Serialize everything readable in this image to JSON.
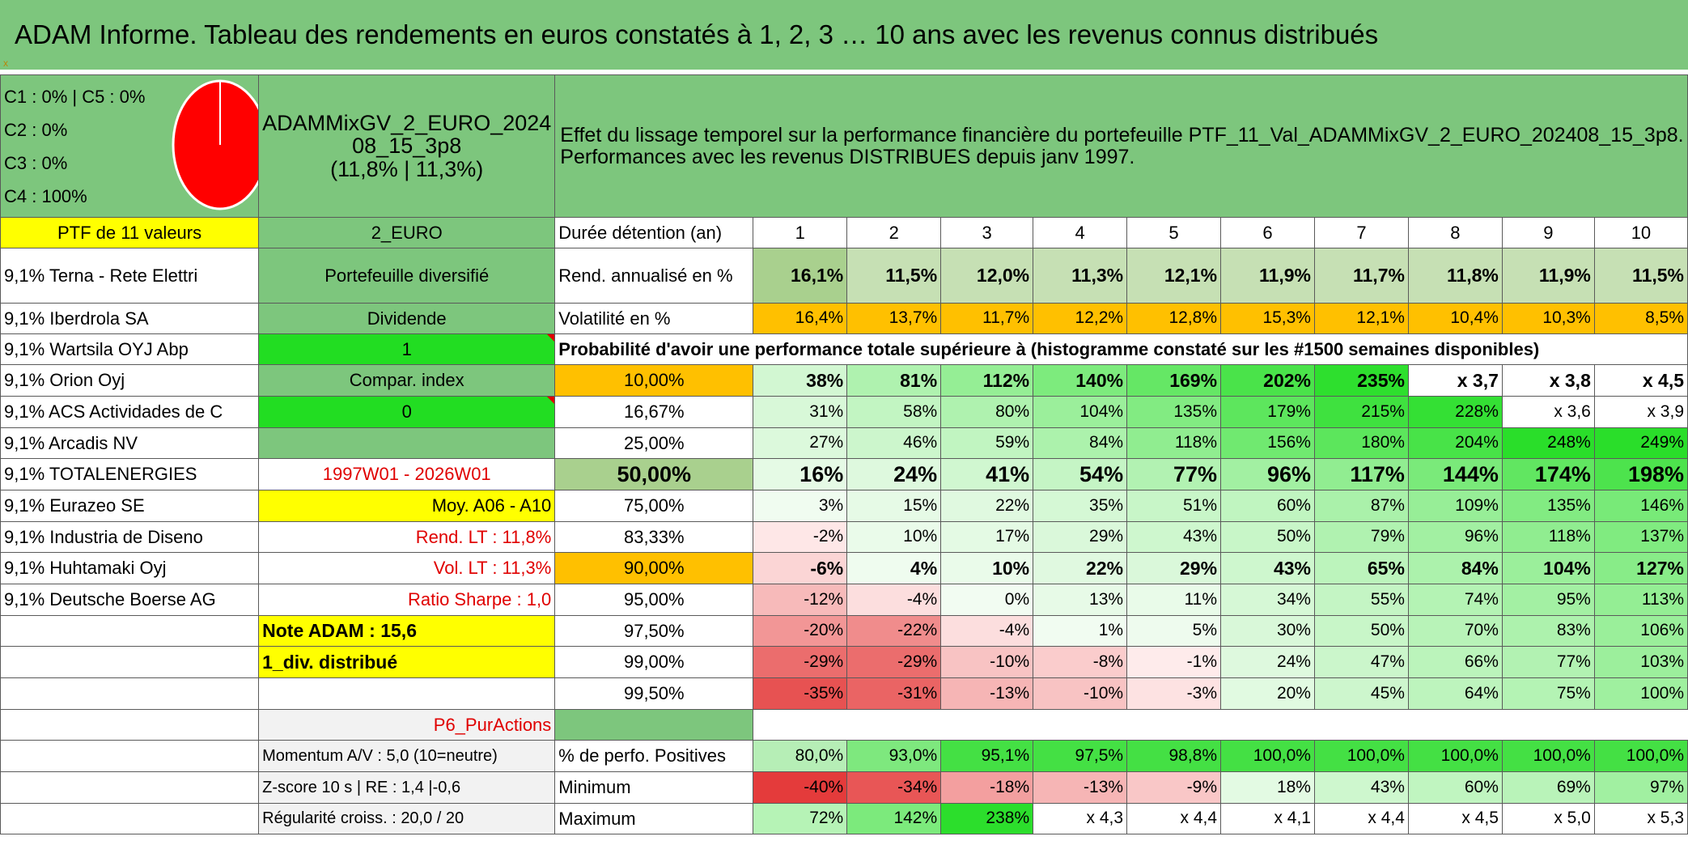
{
  "title": "ADAM Informe. Tableau des rendements en euros constatés à 1, 2, 3 … 10 ans avec les revenus connus distribués",
  "allocation": [
    "C1 : 0% | C5 : 0%",
    "C2 : 0%",
    "C3 : 0%",
    "C4 : 100%"
  ],
  "pie": {
    "slices": [
      {
        "label": "C4",
        "value": 100,
        "color": "#ff0000"
      }
    ],
    "stroke": "#ffffff"
  },
  "portfolio": {
    "name_lines": [
      "ADAMMixGV_2_EURO_2024",
      "08_15_3p8",
      "(11,8% | 11,3%)"
    ],
    "ptf_label": "PTF de 11 valeurs",
    "currency": "2_EURO",
    "type": "Portefeuille diversifié",
    "dividend_label": "Dividende",
    "dividend_value": "1",
    "compar_label": "Compar. index",
    "compar_value": "0",
    "period": "1997W01 - 2026W01",
    "moy": "Moy. A06 - A10",
    "rend_lt": "Rend. LT : 11,8%",
    "vol_lt": "Vol. LT : 11,3%",
    "sharpe": "Ratio Sharpe : 1,0",
    "note": "Note ADAM : 15,6",
    "div_distrib": "1_div. distribué",
    "category": "P6_PurActions",
    "momentum": "Momentum A/V : 5,0 (10=neutre)",
    "zscore": "Z-score 10 s | RE : 1,4 |-0,6",
    "regularite": "Régularité croiss. : 20,0 / 20"
  },
  "description_lines": [
    "Effet du lissage temporel sur la performance financière du portefeuille PTF_11_Val_ADAMMixGV_2_EURO_202408_15_3p8.",
    "Performances avec les revenus DISTRIBUES depuis janv 1997."
  ],
  "holdings": [
    "9,1% Terna - Rete Elettri",
    "9,1% Iberdrola SA",
    "9,1% Wartsila OYJ Abp",
    "9,1% Orion Oyj",
    "9,1% ACS Actividades de C",
    "9,1% Arcadis NV",
    "9,1% TOTALENERGIES",
    "9,1% Eurazeo SE",
    "9,1% Industria de Diseno",
    "9,1% Huhtamaki Oyj",
    "9,1% Deutsche Boerse AG"
  ],
  "table": {
    "duration_label": "Durée détention (an)",
    "years": [
      "1",
      "2",
      "3",
      "4",
      "5",
      "6",
      "7",
      "8",
      "9",
      "10"
    ],
    "rend_label": "Rend. annualisé en %",
    "rend": [
      "16,1%",
      "11,5%",
      "12,0%",
      "11,3%",
      "12,1%",
      "11,9%",
      "11,7%",
      "11,8%",
      "11,9%",
      "11,5%"
    ],
    "vol_label": "Volatilité en %",
    "vol": [
      "16,4%",
      "13,7%",
      "11,7%",
      "12,2%",
      "12,8%",
      "15,3%",
      "12,1%",
      "10,4%",
      "10,3%",
      "8,5%"
    ],
    "prob_title": "Probabilité d'avoir une performance totale supérieure à (histogramme constaté sur les #1500 semaines disponibles)",
    "prob_rows": [
      {
        "pct": "10,00%",
        "values": [
          "38%",
          "81%",
          "112%",
          "140%",
          "169%",
          "202%",
          "235%",
          "x 3,7",
          "x 3,8",
          "x 4,5"
        ]
      },
      {
        "pct": "16,67%",
        "values": [
          "31%",
          "58%",
          "80%",
          "104%",
          "135%",
          "179%",
          "215%",
          "228%",
          "x 3,6",
          "x 3,9"
        ]
      },
      {
        "pct": "25,00%",
        "values": [
          "27%",
          "46%",
          "59%",
          "84%",
          "118%",
          "156%",
          "180%",
          "204%",
          "248%",
          "249%"
        ]
      },
      {
        "pct": "50,00%",
        "values": [
          "16%",
          "24%",
          "41%",
          "54%",
          "77%",
          "96%",
          "117%",
          "144%",
          "174%",
          "198%"
        ]
      },
      {
        "pct": "75,00%",
        "values": [
          "3%",
          "15%",
          "22%",
          "35%",
          "51%",
          "60%",
          "87%",
          "109%",
          "135%",
          "146%"
        ]
      },
      {
        "pct": "83,33%",
        "values": [
          "-2%",
          "10%",
          "17%",
          "29%",
          "43%",
          "50%",
          "79%",
          "96%",
          "118%",
          "137%"
        ]
      },
      {
        "pct": "90,00%",
        "values": [
          "-6%",
          "4%",
          "10%",
          "22%",
          "29%",
          "43%",
          "65%",
          "84%",
          "104%",
          "127%"
        ]
      },
      {
        "pct": "95,00%",
        "values": [
          "-12%",
          "-4%",
          "0%",
          "13%",
          "11%",
          "34%",
          "55%",
          "74%",
          "95%",
          "113%"
        ]
      },
      {
        "pct": "97,50%",
        "values": [
          "-20%",
          "-22%",
          "-4%",
          "1%",
          "5%",
          "30%",
          "50%",
          "70%",
          "83%",
          "106%"
        ]
      },
      {
        "pct": "99,00%",
        "values": [
          "-29%",
          "-29%",
          "-10%",
          "-8%",
          "-1%",
          "24%",
          "47%",
          "66%",
          "77%",
          "103%"
        ]
      },
      {
        "pct": "99,50%",
        "values": [
          "-35%",
          "-31%",
          "-13%",
          "-10%",
          "-3%",
          "20%",
          "45%",
          "64%",
          "75%",
          "100%"
        ]
      }
    ],
    "pos_label": "% de perfo. Positives",
    "pos": [
      "80,0%",
      "93,0%",
      "95,1%",
      "97,5%",
      "98,8%",
      "100,0%",
      "100,0%",
      "100,0%",
      "100,0%",
      "100,0%"
    ],
    "min_label": "Minimum",
    "min": [
      "-40%",
      "-34%",
      "-18%",
      "-13%",
      "-9%",
      "18%",
      "43%",
      "60%",
      "69%",
      "97%"
    ],
    "max_label": "Maximum",
    "max": [
      "72%",
      "142%",
      "238%",
      "x 4,3",
      "x 4,4",
      "x 4,1",
      "x 4,4",
      "x 4,5",
      "x 5,0",
      "x 5,3"
    ]
  }
}
